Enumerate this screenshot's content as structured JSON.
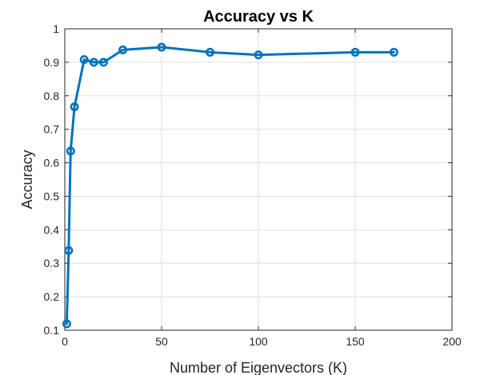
{
  "chart_data": {
    "type": "line",
    "title": "Accuracy vs K",
    "xlabel": "Number of Eigenvectors (K)",
    "ylabel": "Accuracy",
    "xlim": [
      0,
      200
    ],
    "ylim": [
      0.1,
      1
    ],
    "xticks": [
      0,
      50,
      100,
      150,
      200
    ],
    "yticks": [
      0.1,
      0.2,
      0.3,
      0.4,
      0.5,
      0.6,
      0.7,
      0.8,
      0.9,
      1
    ],
    "grid": true,
    "series": [
      {
        "x": [
          1,
          2,
          3,
          5,
          10,
          15,
          20,
          30,
          50,
          75,
          100,
          150,
          170
        ],
        "y": [
          0.119,
          0.338,
          0.635,
          0.767,
          0.908,
          0.9,
          0.9,
          0.937,
          0.945,
          0.93,
          0.922,
          0.93,
          0.93
        ],
        "color": "#0072bd",
        "marker": "circle"
      }
    ]
  }
}
